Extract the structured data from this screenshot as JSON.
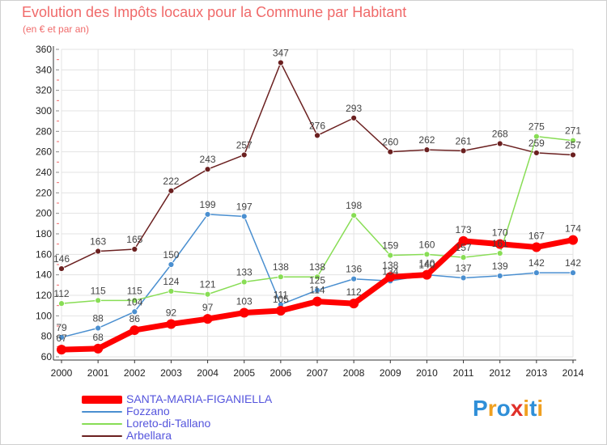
{
  "header": {
    "title": "Evolution des Impôts locaux pour la Commune par Habitant",
    "subtitle": "(en € et par an)"
  },
  "logo": {
    "chars": [
      "P",
      "r",
      "o",
      "x",
      "i",
      "t",
      "i"
    ]
  },
  "colors": {
    "SANTA-MARIA-FIGANIELLA": "#ff0000",
    "Fozzano": "#4a8fd0",
    "Loreto-di-Tallano": "#88dd55",
    "Arbellara": "#6b2020",
    "grid": "#e3e3e3",
    "title": "#f06a6a",
    "legend_text": "#5555dd"
  },
  "chart_data": {
    "type": "line",
    "title": "Evolution des Impôts locaux pour la Commune par Habitant",
    "subtitle": "(en € et par an)",
    "xlabel": "",
    "ylabel": "",
    "x": [
      2000,
      2001,
      2002,
      2003,
      2004,
      2005,
      2006,
      2007,
      2008,
      2009,
      2010,
      2011,
      2012,
      2013,
      2014
    ],
    "ylim": [
      60,
      360
    ],
    "yticks": [
      60,
      80,
      100,
      120,
      140,
      160,
      180,
      200,
      220,
      240,
      260,
      280,
      300,
      320,
      340,
      360
    ],
    "grid": true,
    "legend_position": "bottom-left",
    "series": [
      {
        "name": "Arbellara",
        "values": [
          146,
          163,
          165,
          222,
          243,
          257,
          347,
          276,
          293,
          260,
          262,
          261,
          268,
          259,
          257
        ]
      },
      {
        "name": "Fozzano",
        "values": [
          79,
          88,
          104,
          150,
          199,
          197,
          111,
          125,
          136,
          134,
          140,
          137,
          139,
          142,
          142
        ]
      },
      {
        "name": "Loreto-di-Tallano",
        "values": [
          112,
          115,
          115,
          124,
          121,
          133,
          138,
          138,
          198,
          159,
          160,
          157,
          161,
          275,
          271
        ]
      },
      {
        "name": "SANTA-MARIA-FIGANIELLA",
        "values": [
          67,
          68,
          86,
          92,
          97,
          103,
          105,
          114,
          112,
          138,
          140,
          173,
          170,
          167,
          174
        ]
      }
    ]
  },
  "legend": [
    {
      "name": "SANTA-MARIA-FIGANIELLA"
    },
    {
      "name": "Fozzano"
    },
    {
      "name": "Loreto-di-Tallano"
    },
    {
      "name": "Arbellara"
    }
  ]
}
